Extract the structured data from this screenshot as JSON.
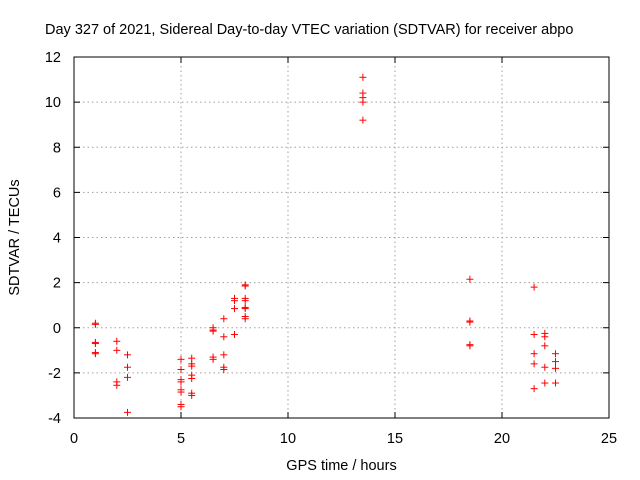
{
  "chart_data": {
    "type": "scatter",
    "title": "Day 327 of 2021, Sidereal Day-to-day VTEC variation (SDTVAR) for receiver abpo",
    "xlabel": "GPS time / hours",
    "ylabel": "SDTVAR / TECUs",
    "xlim": [
      0,
      25
    ],
    "ylim": [
      -4,
      12
    ],
    "xticks": [
      0,
      5,
      10,
      15,
      20,
      25
    ],
    "yticks": [
      -4,
      -2,
      0,
      2,
      4,
      6,
      8,
      10,
      12
    ],
    "grid": true,
    "marker": "+",
    "color": "#ff0000",
    "series": [
      {
        "name": "SDTVAR",
        "points": [
          [
            1.0,
            0.2
          ],
          [
            1.0,
            0.15
          ],
          [
            1.0,
            -0.65
          ],
          [
            1.0,
            -0.7
          ],
          [
            1.0,
            -1.1
          ],
          [
            1.0,
            -1.15
          ],
          [
            2.0,
            -0.6
          ],
          [
            2.0,
            -1.0
          ],
          [
            2.0,
            -2.4
          ],
          [
            2.0,
            -2.55
          ],
          [
            2.5,
            -1.2
          ],
          [
            2.5,
            -1.75
          ],
          [
            2.5,
            -2.2
          ],
          [
            2.5,
            -3.75
          ],
          [
            5.0,
            -1.4
          ],
          [
            5.0,
            -1.85
          ],
          [
            5.0,
            -2.3
          ],
          [
            5.0,
            -2.4
          ],
          [
            5.0,
            -2.75
          ],
          [
            5.0,
            -2.85
          ],
          [
            5.0,
            -3.4
          ],
          [
            5.0,
            -3.5
          ],
          [
            5.5,
            -1.35
          ],
          [
            5.5,
            -1.6
          ],
          [
            5.5,
            -1.7
          ],
          [
            5.5,
            -2.1
          ],
          [
            5.5,
            -2.25
          ],
          [
            5.5,
            -2.9
          ],
          [
            5.5,
            -3.0
          ],
          [
            6.5,
            0.0
          ],
          [
            6.5,
            -0.1
          ],
          [
            6.5,
            -0.15
          ],
          [
            6.5,
            -1.3
          ],
          [
            6.5,
            -1.4
          ],
          [
            7.0,
            0.4
          ],
          [
            7.0,
            -0.4
          ],
          [
            7.0,
            -1.2
          ],
          [
            7.0,
            -1.75
          ],
          [
            7.0,
            -1.85
          ],
          [
            7.5,
            1.3
          ],
          [
            7.5,
            1.2
          ],
          [
            7.5,
            0.85
          ],
          [
            7.5,
            -0.3
          ],
          [
            8.0,
            1.9
          ],
          [
            8.0,
            1.85
          ],
          [
            8.0,
            1.3
          ],
          [
            8.0,
            1.2
          ],
          [
            8.0,
            0.9
          ],
          [
            8.0,
            0.85
          ],
          [
            8.0,
            0.5
          ],
          [
            8.0,
            0.4
          ],
          [
            13.5,
            11.1
          ],
          [
            13.5,
            10.4
          ],
          [
            13.5,
            10.2
          ],
          [
            13.5,
            10.0
          ],
          [
            13.5,
            9.2
          ],
          [
            18.5,
            2.15
          ],
          [
            18.5,
            0.3
          ],
          [
            18.5,
            0.25
          ],
          [
            18.5,
            -0.75
          ],
          [
            18.5,
            -0.8
          ],
          [
            21.5,
            1.8
          ],
          [
            21.5,
            -0.3
          ],
          [
            21.5,
            -1.15
          ],
          [
            21.5,
            -1.6
          ],
          [
            21.5,
            -2.7
          ],
          [
            22.0,
            -0.25
          ],
          [
            22.0,
            -0.4
          ],
          [
            22.0,
            -0.8
          ],
          [
            22.0,
            -1.75
          ],
          [
            22.0,
            -2.45
          ],
          [
            22.5,
            -1.15
          ],
          [
            22.5,
            -1.5
          ],
          [
            22.5,
            -1.8
          ],
          [
            22.5,
            -2.45
          ]
        ]
      }
    ]
  }
}
